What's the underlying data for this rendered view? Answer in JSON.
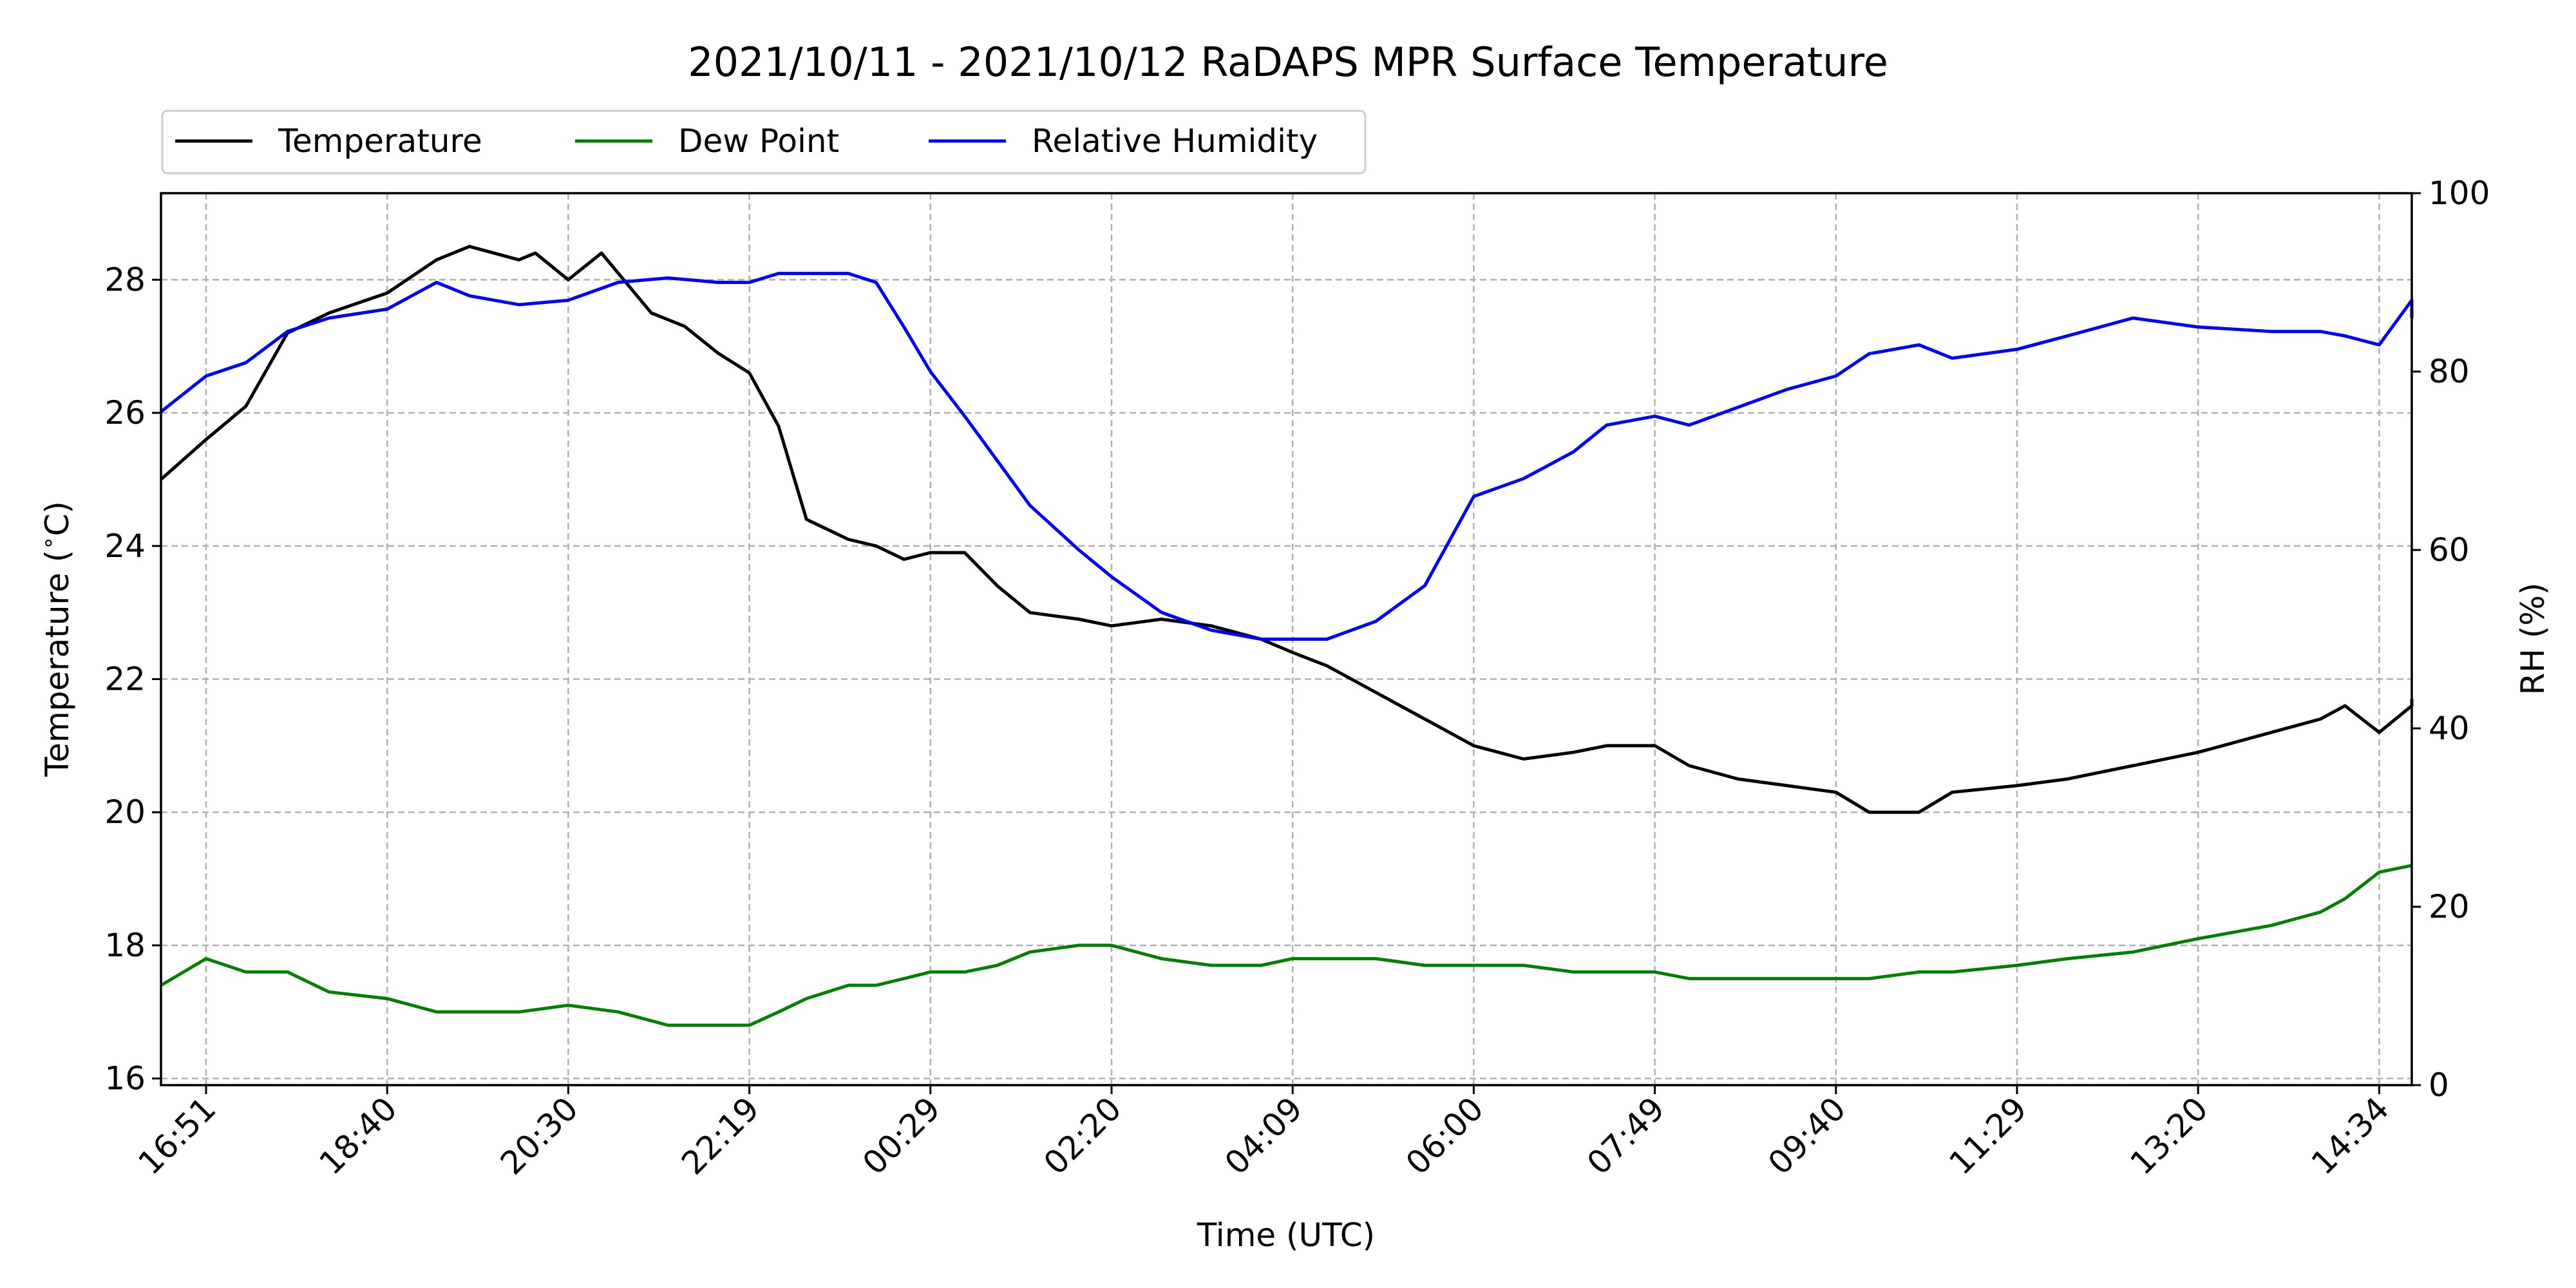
{
  "chart_data": {
    "type": "line",
    "title": "2021/10/11 - 2021/10/12 RaDAPS MPR Surface Temperature",
    "xlabel": "Time (UTC)",
    "ylabel": "Temperature ($^\\circ$C)",
    "y2label": "RH (%)",
    "x_ticks": [
      "16:51",
      "18:40",
      "20:30",
      "22:19",
      "00:29",
      "02:20",
      "04:09",
      "06:00",
      "07:49",
      "09:40",
      "11:29",
      "13:20",
      "14:34"
    ],
    "ylim": [
      15.9,
      29.3
    ],
    "y_ticks": [
      16,
      18,
      20,
      22,
      24,
      26,
      28
    ],
    "y2lim": [
      0,
      100
    ],
    "y2_ticks": [
      0,
      20,
      40,
      60,
      80,
      100
    ],
    "grid": true,
    "legend_position": "top-left",
    "legend_entries": [
      "Temperature",
      "Dew Point",
      "Relative Humidity"
    ],
    "series": [
      {
        "name": "Temperature",
        "color": "#000000",
        "axis": "left",
        "x": [
          "16:23",
          "16:51",
          "17:15",
          "17:40",
          "18:05",
          "18:40",
          "19:10",
          "19:30",
          "20:00",
          "20:10",
          "20:30",
          "20:50",
          "21:00",
          "21:20",
          "21:40",
          "22:00",
          "22:19",
          "22:40",
          "23:00",
          "23:30",
          "23:50",
          "00:10",
          "00:29",
          "00:50",
          "01:10",
          "01:30",
          "02:00",
          "02:20",
          "02:50",
          "03:20",
          "03:50",
          "04:09",
          "04:30",
          "05:00",
          "05:30",
          "06:00",
          "06:30",
          "07:00",
          "07:20",
          "07:49",
          "08:10",
          "08:40",
          "09:10",
          "09:40",
          "10:00",
          "10:30",
          "10:50",
          "11:29",
          "12:00",
          "12:40",
          "13:20",
          "13:50",
          "14:10",
          "14:20",
          "14:34",
          "14:50",
          "15:00"
        ],
        "values": [
          25.0,
          25.6,
          26.1,
          27.2,
          27.5,
          27.8,
          28.3,
          28.5,
          28.3,
          28.4,
          28.0,
          28.4,
          28.1,
          27.5,
          27.3,
          26.9,
          26.6,
          25.8,
          24.4,
          24.1,
          24.0,
          23.8,
          23.9,
          23.9,
          23.4,
          23.0,
          22.9,
          22.8,
          22.9,
          22.8,
          22.6,
          22.4,
          22.2,
          21.8,
          21.4,
          21.0,
          20.8,
          20.9,
          21.0,
          21.0,
          20.7,
          20.5,
          20.4,
          20.3,
          20.0,
          20.0,
          20.3,
          20.4,
          20.5,
          20.7,
          20.9,
          21.2,
          21.4,
          21.6,
          21.2,
          21.6,
          21.7
        ]
      },
      {
        "name": "Dew Point",
        "color": "#008000",
        "axis": "left",
        "x": [
          "16:23",
          "16:51",
          "17:15",
          "17:40",
          "18:05",
          "18:40",
          "19:10",
          "19:30",
          "20:00",
          "20:30",
          "21:00",
          "21:30",
          "22:00",
          "22:19",
          "22:40",
          "23:00",
          "23:30",
          "23:50",
          "00:10",
          "00:29",
          "00:50",
          "01:10",
          "01:30",
          "02:00",
          "02:20",
          "02:50",
          "03:20",
          "03:50",
          "04:09",
          "04:30",
          "05:00",
          "05:30",
          "06:00",
          "06:30",
          "07:00",
          "07:20",
          "07:49",
          "08:10",
          "08:40",
          "09:10",
          "09:40",
          "10:00",
          "10:30",
          "10:50",
          "11:29",
          "12:00",
          "12:40",
          "13:20",
          "13:50",
          "14:10",
          "14:20",
          "14:34",
          "14:50",
          "15:00"
        ],
        "values": [
          17.4,
          17.8,
          17.6,
          17.6,
          17.3,
          17.2,
          17.0,
          17.0,
          17.0,
          17.1,
          17.0,
          16.8,
          16.8,
          16.8,
          17.0,
          17.2,
          17.4,
          17.4,
          17.5,
          17.6,
          17.6,
          17.7,
          17.9,
          18.0,
          18.0,
          17.8,
          17.7,
          17.7,
          17.8,
          17.8,
          17.8,
          17.7,
          17.7,
          17.7,
          17.6,
          17.6,
          17.6,
          17.5,
          17.5,
          17.5,
          17.5,
          17.5,
          17.6,
          17.6,
          17.7,
          17.8,
          17.9,
          18.1,
          18.3,
          18.5,
          18.7,
          19.1,
          19.2,
          19.2
        ]
      },
      {
        "name": "Relative Humidity",
        "color": "#0000ff",
        "axis": "right",
        "x": [
          "16:23",
          "16:51",
          "17:15",
          "17:40",
          "18:05",
          "18:40",
          "19:10",
          "19:30",
          "20:00",
          "20:30",
          "21:00",
          "21:30",
          "22:00",
          "22:19",
          "22:40",
          "23:00",
          "23:30",
          "23:50",
          "00:10",
          "00:29",
          "00:50",
          "01:10",
          "01:30",
          "02:00",
          "02:20",
          "02:50",
          "03:20",
          "03:50",
          "04:09",
          "04:30",
          "05:00",
          "05:30",
          "06:00",
          "06:30",
          "07:00",
          "07:20",
          "07:49",
          "08:10",
          "08:40",
          "09:10",
          "09:40",
          "10:00",
          "10:30",
          "10:50",
          "11:29",
          "12:00",
          "12:40",
          "13:20",
          "13:50",
          "14:10",
          "14:20",
          "14:34",
          "14:50",
          "15:00"
        ],
        "values": [
          75.5,
          79.5,
          81.0,
          84.5,
          86.0,
          87.0,
          90.0,
          88.5,
          87.5,
          88.0,
          90.0,
          90.5,
          90.0,
          90.0,
          91.0,
          91.0,
          91.0,
          90.0,
          85.0,
          80.0,
          75.0,
          70.0,
          65.0,
          60.0,
          57.0,
          53.0,
          51.0,
          50.0,
          50.0,
          50.0,
          52.0,
          56.0,
          66.0,
          68.0,
          71.0,
          74.0,
          75.0,
          74.0,
          76.0,
          78.0,
          79.5,
          82.0,
          83.0,
          81.5,
          82.5,
          84.0,
          86.0,
          85.0,
          84.5,
          84.5,
          84.0,
          83.0,
          88.0,
          86.0
        ]
      }
    ]
  }
}
